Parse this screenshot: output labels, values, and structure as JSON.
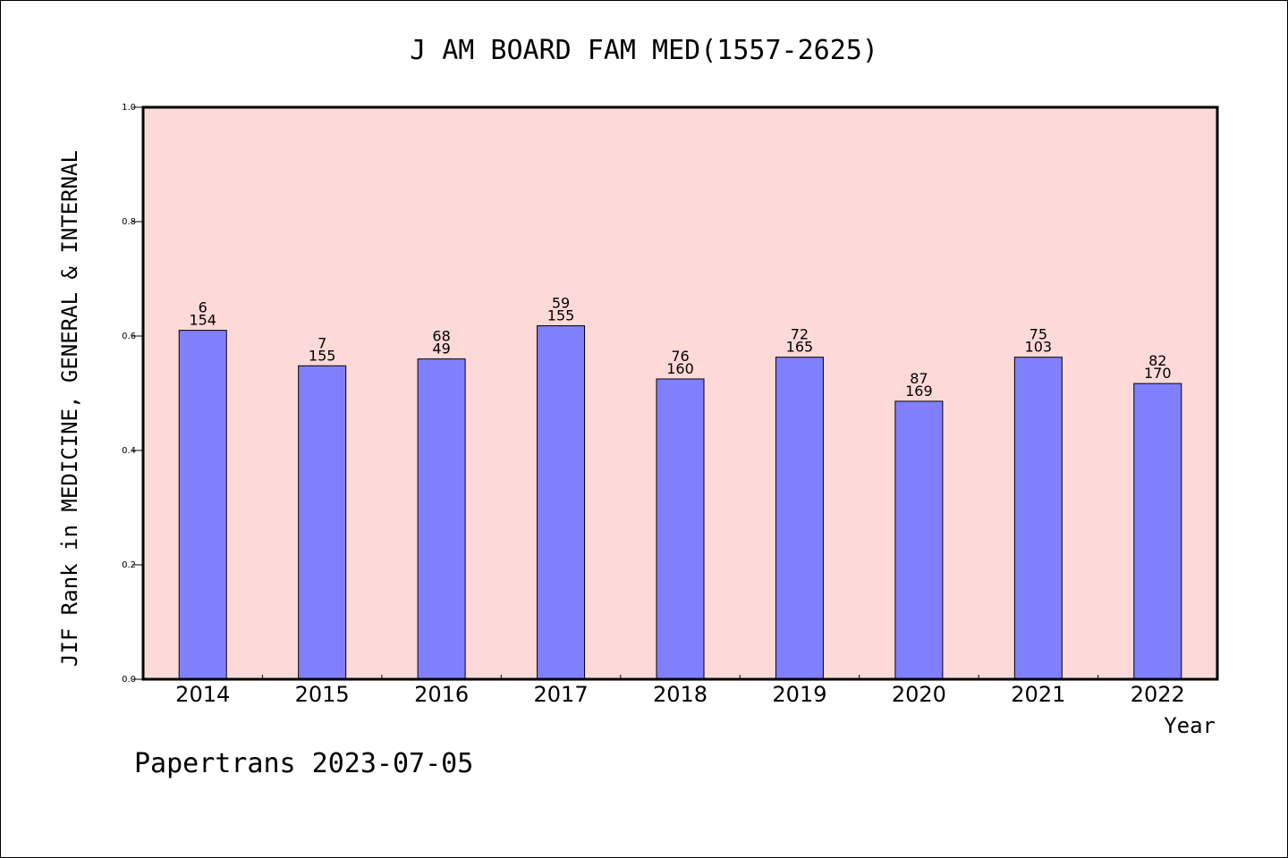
{
  "chart_data": {
    "type": "bar",
    "title": "J AM BOARD FAM MED(1557-2625)",
    "xlabel": "Year",
    "ylabel": "JIF Rank in MEDICINE, GENERAL & INTERNAL",
    "categories": [
      "2014",
      "2015",
      "2016",
      "2017",
      "2018",
      "2019",
      "2020",
      "2021",
      "2022"
    ],
    "values": [
      0.61,
      0.548,
      0.56,
      0.618,
      0.525,
      0.563,
      0.486,
      0.563,
      0.517
    ],
    "labels_top": [
      "6",
      "7",
      "68",
      "59",
      "76",
      "72",
      "87",
      "75",
      "82"
    ],
    "labels_bottom": [
      "154",
      "155",
      "49",
      "155",
      "160",
      "165",
      "169",
      "103",
      "170"
    ],
    "ylim": [
      0,
      1.0
    ],
    "yticks": [
      "0.0",
      "0.2",
      "0.4",
      "0.6",
      "0.8",
      "1.0"
    ],
    "grid": false,
    "colors": {
      "plot_background": "#fdd9d7",
      "bar_fill": "#8080ff",
      "bar_stroke": "#000000"
    }
  },
  "footer": "Papertrans 2023-07-05"
}
